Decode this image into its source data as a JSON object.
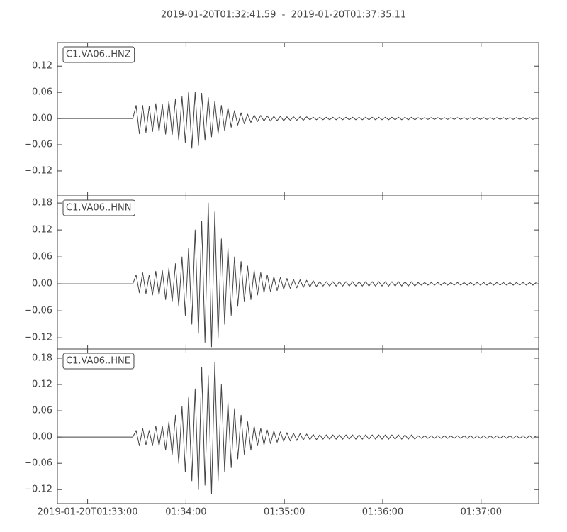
{
  "title": "2019-01-20T01:32:41.59  -  2019-01-20T01:37:35.11",
  "x": [
    0,
    2,
    4,
    6,
    8,
    10,
    12,
    14,
    16,
    18,
    20,
    22,
    24,
    26,
    28,
    30,
    32,
    34,
    36,
    38,
    40,
    42,
    44,
    46,
    48,
    50,
    52,
    54,
    56,
    58,
    60,
    62,
    64,
    66,
    68,
    70,
    72,
    74,
    76,
    78,
    80,
    82,
    84,
    86,
    88,
    90,
    92,
    94,
    96,
    98,
    100,
    102,
    104,
    106,
    108,
    110,
    112,
    114,
    116,
    118,
    120,
    122,
    124,
    126,
    128,
    130,
    132,
    134,
    136,
    138,
    140,
    142,
    144,
    146,
    148,
    150,
    152,
    154,
    156,
    158,
    160,
    162,
    164,
    166,
    168,
    170,
    172,
    174,
    176,
    178,
    180,
    182,
    184,
    186,
    188,
    190,
    192,
    194,
    196,
    198,
    200,
    202,
    204,
    206,
    208,
    210,
    212,
    214,
    216,
    218,
    220,
    222,
    224,
    226,
    228,
    230,
    232,
    234,
    236,
    238,
    240,
    242,
    244,
    246,
    248,
    250,
    252,
    254,
    256,
    258,
    260,
    262,
    264,
    266,
    268,
    270,
    272,
    274,
    276,
    278,
    280,
    282,
    284,
    286,
    288,
    290,
    292
  ],
  "xlim": [
    0,
    293.52
  ],
  "xticks": [
    {
      "value": 18.41,
      "label": "2019-01-20T01:33:00"
    },
    {
      "value": 78.41,
      "label": "01:34:00"
    },
    {
      "value": 138.41,
      "label": "01:35:00"
    },
    {
      "value": 198.41,
      "label": "01:36:00"
    },
    {
      "value": 258.41,
      "label": "01:37:00"
    }
  ],
  "chart_data": [
    {
      "type": "line",
      "ylim": [
        -0.177,
        0.174
      ],
      "yticks": [
        {
          "value": -0.12,
          "label": "−0.12"
        },
        {
          "value": -0.06,
          "label": "−0.06"
        },
        {
          "value": 0,
          "label": "0.00"
        },
        0.06,
        0.12
      ],
      "series": [
        {
          "name": "C1.VA06..HNZ",
          "color": "#444444",
          "values": [
            0,
            0,
            0,
            0,
            0,
            0,
            0,
            0,
            0,
            0,
            0,
            0,
            0,
            0,
            0,
            0,
            0,
            0,
            0,
            0,
            0,
            0,
            0,
            0,
            0.03,
            -0.035,
            0.03,
            -0.032,
            0.028,
            -0.03,
            0.034,
            -0.03,
            0.033,
            -0.036,
            0.04,
            -0.038,
            0.045,
            -0.05,
            0.05,
            -0.055,
            0.06,
            -0.068,
            0.06,
            -0.062,
            0.058,
            -0.05,
            0.048,
            -0.042,
            0.04,
            -0.035,
            0.03,
            -0.028,
            0.025,
            -0.02,
            0.018,
            -0.015,
            0.013,
            -0.012,
            0.01,
            -0.009,
            0.008,
            -0.007,
            0.007,
            -0.006,
            0.006,
            -0.006,
            0.005,
            -0.005,
            0.005,
            -0.005,
            0.004,
            -0.004,
            0.004,
            -0.004,
            0.004,
            -0.004,
            0.004,
            -0.003,
            0.003,
            -0.003,
            0.003,
            -0.003,
            0.003,
            -0.003,
            0.003,
            -0.003,
            0.003,
            -0.003,
            0.003,
            -0.003,
            0.003,
            -0.003,
            0.003,
            -0.003,
            0.003,
            -0.003,
            0.003,
            -0.003,
            0.003,
            -0.003,
            0.003,
            -0.003,
            0.003,
            -0.003,
            0.003,
            -0.003,
            0.003,
            -0.003,
            0.003,
            -0.003,
            0.002,
            -0.002,
            0.002,
            -0.002,
            0.002,
            -0.002,
            0.002,
            -0.002,
            0.002,
            -0.002,
            0.002,
            -0.002,
            0.002,
            -0.002,
            0.002,
            -0.002,
            0.002,
            -0.002,
            0.002,
            -0.002,
            0.002,
            -0.002,
            0.002,
            -0.002,
            0.002,
            -0.002,
            0.002,
            -0.002,
            0.002,
            -0.002,
            0.002,
            -0.002,
            0.002,
            -0.002,
            0.002,
            -0.002,
            0.002
          ]
        }
      ]
    },
    {
      "type": "line",
      "ylim": [
        -0.145,
        0.196
      ],
      "yticks": [
        {
          "value": -0.12,
          "label": "−0.12"
        },
        {
          "value": -0.06,
          "label": "−0.06"
        },
        {
          "value": 0,
          "label": "0.00"
        },
        0.06,
        0.12,
        0.18
      ],
      "series": [
        {
          "name": "C1.VA06..HNN",
          "color": "#444444",
          "values": [
            0,
            0,
            0,
            0,
            0,
            0,
            0,
            0,
            0,
            0,
            0,
            0,
            0,
            0,
            0,
            0,
            0,
            0,
            0,
            0,
            0,
            0,
            0,
            0,
            0.02,
            -0.02,
            0.025,
            -0.022,
            0.02,
            -0.025,
            0.028,
            -0.025,
            0.03,
            -0.035,
            0.035,
            -0.04,
            0.045,
            -0.05,
            0.06,
            -0.07,
            0.08,
            -0.09,
            0.12,
            -0.11,
            0.14,
            -0.13,
            0.18,
            -0.14,
            0.16,
            -0.12,
            0.1,
            -0.09,
            0.08,
            -0.07,
            0.06,
            -0.05,
            0.05,
            -0.04,
            0.04,
            -0.035,
            0.03,
            -0.025,
            0.025,
            -0.02,
            0.02,
            -0.018,
            0.016,
            -0.015,
            0.014,
            -0.012,
            0.012,
            -0.01,
            0.01,
            -0.009,
            0.009,
            -0.008,
            0.008,
            -0.007,
            0.007,
            -0.006,
            0.005,
            -0.005,
            0.005,
            -0.005,
            0.005,
            -0.005,
            0.005,
            -0.005,
            0.005,
            -0.005,
            0.005,
            -0.005,
            0.005,
            -0.005,
            0.005,
            -0.005,
            0.005,
            -0.005,
            0.005,
            -0.005,
            0.005,
            -0.005,
            0.005,
            -0.005,
            0.005,
            -0.005,
            0.005,
            -0.005,
            0.005,
            -0.005,
            0.003,
            -0.003,
            0.003,
            -0.003,
            0.003,
            -0.003,
            0.003,
            -0.003,
            0.003,
            -0.003,
            0.003,
            -0.003,
            0.003,
            -0.003,
            0.003,
            -0.003,
            0.003,
            -0.003,
            0.003,
            -0.003,
            0.003,
            -0.003,
            0.003,
            -0.003,
            0.003,
            -0.003,
            0.003,
            -0.003,
            0.003,
            -0.003,
            0.003,
            -0.003,
            0.003,
            -0.003,
            0.003,
            -0.003,
            0.003
          ]
        }
      ]
    },
    {
      "type": "line",
      "ylim": [
        -0.152,
        0.201
      ],
      "yticks": [
        {
          "value": -0.12,
          "label": "−0.12"
        },
        {
          "value": -0.06,
          "label": "−0.06"
        },
        {
          "value": 0,
          "label": "0.00"
        },
        0.06,
        0.12,
        0.18
      ],
      "series": [
        {
          "name": "C1.VA06..HNE",
          "color": "#444444",
          "values": [
            0,
            0,
            0,
            0,
            0,
            0,
            0,
            0,
            0,
            0,
            0,
            0,
            0,
            0,
            0,
            0,
            0,
            0,
            0,
            0,
            0,
            0,
            0,
            0,
            0.015,
            -0.02,
            0.02,
            -0.018,
            0.015,
            -0.02,
            0.025,
            -0.02,
            0.025,
            -0.03,
            0.035,
            -0.04,
            0.05,
            -0.06,
            0.07,
            -0.08,
            0.09,
            -0.1,
            0.11,
            -0.12,
            0.16,
            -0.11,
            0.14,
            -0.13,
            0.17,
            -0.1,
            0.12,
            -0.08,
            0.08,
            -0.07,
            0.065,
            -0.05,
            0.05,
            -0.04,
            0.035,
            -0.03,
            0.025,
            -0.02,
            0.02,
            -0.018,
            0.016,
            -0.015,
            0.014,
            -0.012,
            0.012,
            -0.01,
            0.01,
            -0.009,
            0.009,
            -0.008,
            0.008,
            -0.007,
            0.007,
            -0.006,
            0.006,
            -0.006,
            0.005,
            -0.005,
            0.005,
            -0.005,
            0.005,
            -0.005,
            0.005,
            -0.005,
            0.005,
            -0.005,
            0.005,
            -0.005,
            0.005,
            -0.005,
            0.005,
            -0.005,
            0.005,
            -0.005,
            0.005,
            -0.005,
            0.005,
            -0.005,
            0.005,
            -0.005,
            0.005,
            -0.005,
            0.005,
            -0.005,
            0.005,
            -0.005,
            0.003,
            -0.003,
            0.003,
            -0.003,
            0.003,
            -0.003,
            0.003,
            -0.003,
            0.003,
            -0.003,
            0.003,
            -0.003,
            0.003,
            -0.003,
            0.003,
            -0.003,
            0.003,
            -0.003,
            0.003,
            -0.003,
            0.003,
            -0.003,
            0.003,
            -0.003,
            0.003,
            -0.003,
            0.003,
            -0.003,
            0.003,
            -0.003,
            0.003,
            -0.003,
            0.003,
            -0.003,
            0.003,
            -0.003,
            0.003
          ]
        }
      ]
    }
  ]
}
